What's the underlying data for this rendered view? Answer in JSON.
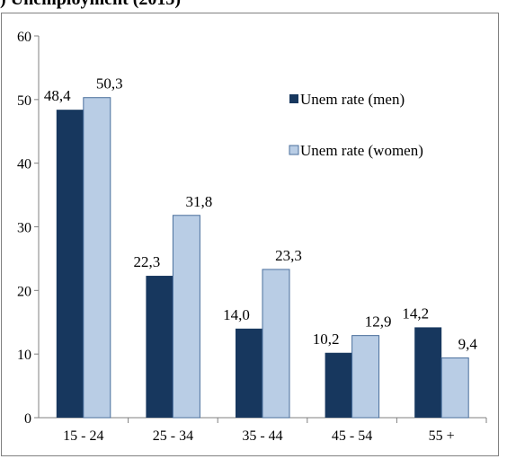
{
  "header": {
    "title_fragment": ") Unemployment (2013)"
  },
  "chart_data": {
    "type": "bar",
    "categories": [
      "15 - 24",
      "25 - 34",
      "35 - 44",
      "45 - 54",
      "55 +"
    ],
    "series": [
      {
        "name": "Unem rate (men)",
        "values": [
          48.4,
          22.3,
          14.0,
          10.2,
          14.2
        ],
        "labels": [
          "48,4",
          "22,3",
          "14,0",
          "10,2",
          "14,2"
        ],
        "color": "#17375e"
      },
      {
        "name": "Unem rate (women)",
        "values": [
          50.3,
          31.8,
          23.3,
          12.9,
          9.4
        ],
        "labels": [
          "50,3",
          "31,8",
          "23,3",
          "12,9",
          "9,4"
        ],
        "color": "#b9cde5"
      }
    ],
    "yticks": [
      "0",
      "10",
      "20",
      "30",
      "40",
      "50",
      "60"
    ],
    "ylim": [
      0,
      60
    ],
    "grid": false,
    "legend": "right"
  }
}
